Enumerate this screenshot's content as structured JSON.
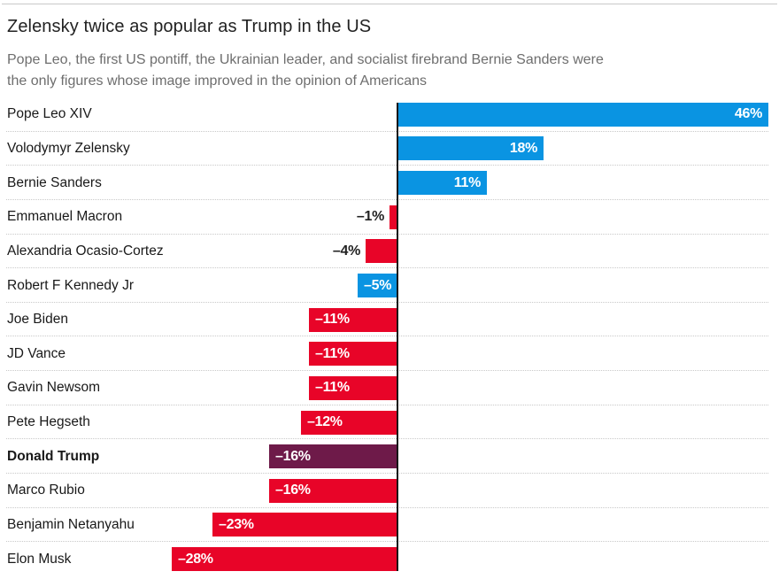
{
  "header": {
    "title": "Zelensky twice as popular as Trump in the US",
    "subtitle": "Pope Leo, the first US pontiff, the Ukrainian leader, and socialist firebrand Bernie Sanders were the only figures whose image improved in the opinion of Americans",
    "subtitle_lines": [
      "Pope Leo, the first US pontiff, the Ukrainian leader, and socialist firebrand Bernie Sanders were",
      "the only figures whose image improved in the opinion of Americans"
    ]
  },
  "colors": {
    "positive_blue": "#0a94e2",
    "negative_red": "#e80428",
    "trump_dark": "#6e1a49",
    "axis_line": "#161616",
    "gridline": "#c9c9c9",
    "title_text": "#222222",
    "subtitle_text": "#6e6e6e",
    "name_text": "#191919",
    "outside_value_text": "#222222"
  },
  "chart_data": {
    "type": "bar",
    "orientation": "horizontal",
    "value_unit": "%",
    "title": "Zelensky twice as popular as Trump in the US",
    "xlim": [
      -28,
      46
    ],
    "grid": "dotted-row-separators",
    "legend": "none",
    "categories": [
      "Pope Leo XIV",
      "Volodymyr Zelensky",
      "Bernie Sanders",
      "Emmanuel Macron",
      "Alexandria Ocasio-Cortez",
      "Robert F Kennedy Jr",
      "Joe Biden",
      "JD Vance",
      "Gavin Newsom",
      "Pete Hegseth",
      "Donald Trump",
      "Marco Rubio",
      "Benjamin Netanyahu",
      "Elon Musk"
    ],
    "values": [
      46,
      18,
      11,
      -1,
      -4,
      -5,
      -11,
      -11,
      -11,
      -12,
      -16,
      -16,
      -23,
      -28
    ],
    "bars": [
      {
        "name": "Pope Leo XIV",
        "value": 46,
        "label": "46%",
        "color": "positive_blue",
        "bold": false,
        "label_inside": true
      },
      {
        "name": "Volodymyr Zelensky",
        "value": 18,
        "label": "18%",
        "color": "positive_blue",
        "bold": false,
        "label_inside": true
      },
      {
        "name": "Bernie Sanders",
        "value": 11,
        "label": "11%",
        "color": "positive_blue",
        "bold": false,
        "label_inside": true
      },
      {
        "name": "Emmanuel Macron",
        "value": -1,
        "label": "–1%",
        "color": "negative_red",
        "bold": false,
        "label_inside": false
      },
      {
        "name": "Alexandria Ocasio-Cortez",
        "value": -4,
        "label": "–4%",
        "color": "negative_red",
        "bold": false,
        "label_inside": false
      },
      {
        "name": "Robert F Kennedy Jr",
        "value": -5,
        "label": "–5%",
        "color": "positive_blue",
        "bold": false,
        "label_inside": true
      },
      {
        "name": "Joe Biden",
        "value": -11,
        "label": "–11%",
        "color": "negative_red",
        "bold": false,
        "label_inside": true
      },
      {
        "name": "JD Vance",
        "value": -11,
        "label": "–11%",
        "color": "negative_red",
        "bold": false,
        "label_inside": true
      },
      {
        "name": "Gavin Newsom",
        "value": -11,
        "label": "–11%",
        "color": "negative_red",
        "bold": false,
        "label_inside": true
      },
      {
        "name": "Pete Hegseth",
        "value": -12,
        "label": "–12%",
        "color": "negative_red",
        "bold": false,
        "label_inside": true
      },
      {
        "name": "Donald Trump",
        "value": -16,
        "label": "–16%",
        "color": "trump_dark",
        "bold": true,
        "label_inside": true
      },
      {
        "name": "Marco Rubio",
        "value": -16,
        "label": "–16%",
        "color": "negative_red",
        "bold": false,
        "label_inside": true
      },
      {
        "name": "Benjamin Netanyahu",
        "value": -23,
        "label": "–23%",
        "color": "negative_red",
        "bold": false,
        "label_inside": true
      },
      {
        "name": "Elon Musk",
        "value": -28,
        "label": "–28%",
        "color": "negative_red",
        "bold": false,
        "label_inside": true
      }
    ]
  }
}
